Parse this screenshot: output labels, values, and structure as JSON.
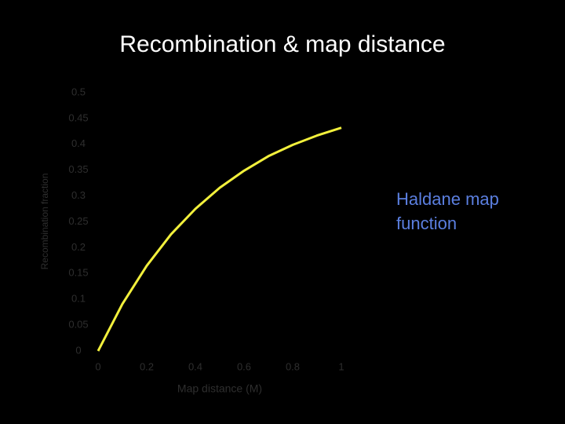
{
  "chart_data": {
    "type": "line",
    "title": "Recombination & map distance",
    "x_label": "Map distance (M)",
    "y_label": "Recombination fraction",
    "annotation": "Haldane map function",
    "x": [
      0,
      0.1,
      0.2,
      0.3,
      0.4,
      0.5,
      0.6,
      0.7,
      0.8,
      0.9,
      1
    ],
    "series": [
      {
        "color": "#f2f03c",
        "values": [
          0,
          0.091,
          0.165,
          0.226,
          0.275,
          0.316,
          0.349,
          0.377,
          0.399,
          0.417,
          0.432
        ]
      }
    ],
    "xlim": [
      0,
      1
    ],
    "xticks": [
      0,
      0.2,
      0.4,
      0.6,
      0.8,
      1
    ],
    "ylim": [
      0,
      0.5
    ],
    "yticks": [
      0,
      0.05,
      0.1,
      0.15,
      0.2,
      0.25,
      0.3,
      0.35,
      0.4,
      0.45,
      0.5
    ]
  }
}
